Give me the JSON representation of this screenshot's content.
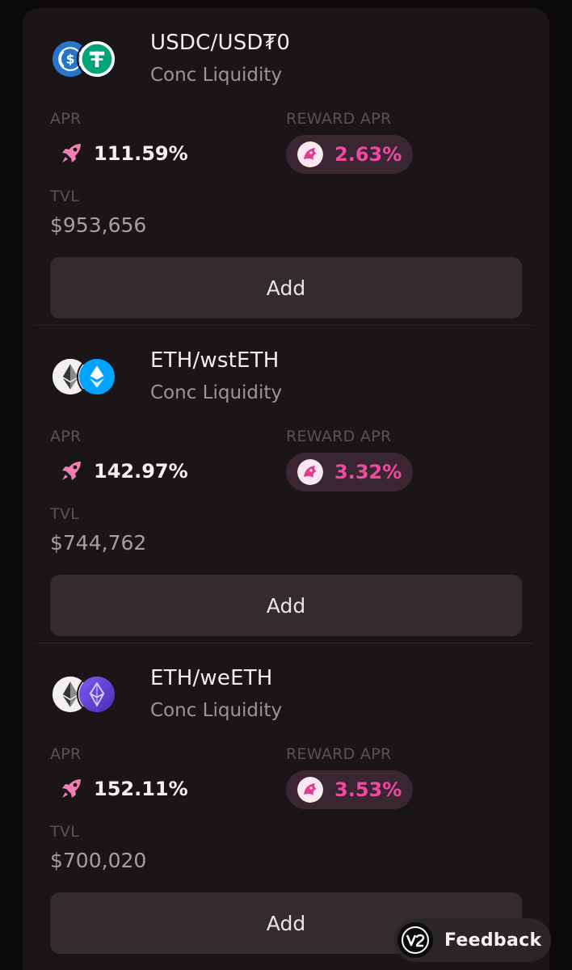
{
  "labels": {
    "apr": "APR",
    "reward_apr": "REWARD APR",
    "tvl": "TVL",
    "add": "Add"
  },
  "pools": [
    {
      "pair": "USDC/USD₮0",
      "type": "Conc Liquidity",
      "apr": "111.59%",
      "reward_apr": "2.63%",
      "tvl": "$953,656",
      "icons": [
        "usdc-icon",
        "usdt0-icon"
      ]
    },
    {
      "pair": "ETH/wstETH",
      "type": "Conc Liquidity",
      "apr": "142.97%",
      "reward_apr": "3.32%",
      "tvl": "$744,762",
      "icons": [
        "eth-icon",
        "wsteth-icon"
      ]
    },
    {
      "pair": "ETH/weETH",
      "type": "Conc Liquidity",
      "apr": "152.11%",
      "reward_apr": "3.53%",
      "tvl": "$700,020",
      "icons": [
        "eth-icon",
        "weeth-icon"
      ]
    }
  ],
  "feedback": {
    "label": "Feedback",
    "icon": "v2-logo-icon"
  },
  "colors": {
    "background": "#0b090a",
    "card": "#1a1517",
    "button": "#342b30",
    "reward_pill": "#3a2630",
    "accent_pink": "#ef4aa1"
  }
}
